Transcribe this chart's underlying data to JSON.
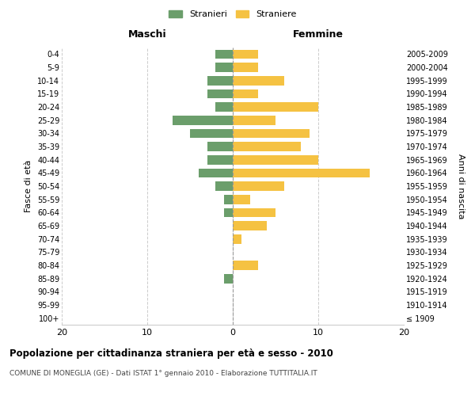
{
  "age_groups": [
    "100+",
    "95-99",
    "90-94",
    "85-89",
    "80-84",
    "75-79",
    "70-74",
    "65-69",
    "60-64",
    "55-59",
    "50-54",
    "45-49",
    "40-44",
    "35-39",
    "30-34",
    "25-29",
    "20-24",
    "15-19",
    "10-14",
    "5-9",
    "0-4"
  ],
  "birth_years": [
    "≤ 1909",
    "1910-1914",
    "1915-1919",
    "1920-1924",
    "1925-1929",
    "1930-1934",
    "1935-1939",
    "1940-1944",
    "1945-1949",
    "1950-1954",
    "1955-1959",
    "1960-1964",
    "1965-1969",
    "1970-1974",
    "1975-1979",
    "1980-1984",
    "1985-1989",
    "1990-1994",
    "1995-1999",
    "2000-2004",
    "2005-2009"
  ],
  "maschi": [
    0,
    0,
    0,
    1,
    0,
    0,
    0,
    0,
    1,
    1,
    2,
    4,
    3,
    3,
    5,
    7,
    2,
    3,
    3,
    2,
    2
  ],
  "femmine": [
    0,
    0,
    0,
    0,
    3,
    0,
    1,
    4,
    5,
    2,
    6,
    16,
    10,
    8,
    9,
    5,
    10,
    3,
    6,
    3,
    3
  ],
  "maschi_color": "#6b9e6b",
  "femmine_color": "#f5c242",
  "background_color": "#ffffff",
  "grid_color": "#cccccc",
  "title": "Popolazione per cittadinanza straniera per età e sesso - 2010",
  "subtitle": "COMUNE DI MONEGLIA (GE) - Dati ISTAT 1° gennaio 2010 - Elaborazione TUTTITALIA.IT",
  "xlabel_left": "Maschi",
  "xlabel_right": "Femmine",
  "ylabel_left": "Fasce di età",
  "ylabel_right": "Anni di nascita",
  "legend_maschi": "Stranieri",
  "legend_femmine": "Straniere",
  "xlim": 20,
  "figsize": [
    6.0,
    5.0
  ],
  "dpi": 100
}
